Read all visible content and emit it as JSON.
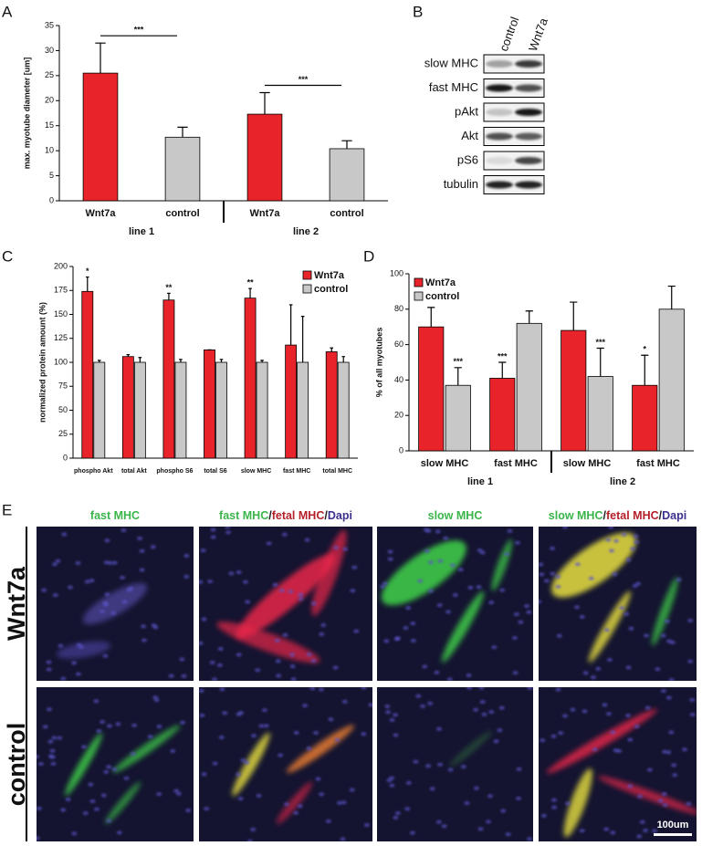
{
  "panel_labels": [
    "A",
    "B",
    "C",
    "D",
    "E"
  ],
  "chart_data": [
    {
      "type": "bar",
      "y_label": "max. myotube diameter [um]",
      "categories": [
        "Wnt7a",
        "control",
        "Wnt7a",
        "control"
      ],
      "groups": [
        "line 1",
        "line 2"
      ],
      "annotations": [
        "***",
        "***"
      ],
      "values": [
        25.5,
        12.7,
        17.3,
        10.4
      ],
      "errors": [
        6,
        2,
        4.3,
        1.6
      ],
      "colors": [
        "#e8232a",
        "#c8c8c8",
        "#e8232a",
        "#c8c8c8"
      ],
      "ylim": [
        0,
        35
      ],
      "yticks": [
        0,
        5,
        10,
        15,
        20,
        25,
        30,
        35
      ]
    },
    {
      "type": "grouped_bar",
      "y_label": "normalized protein amount (%)",
      "legend": "upper right",
      "categories": [
        "phospho Akt",
        "total Akt",
        "phospho S6",
        "total S6",
        "slow MHC",
        "fast MHC",
        "total MHC"
      ],
      "series": [
        {
          "name": "Wnt7a",
          "color": "#e8232a",
          "values": [
            174,
            106,
            165,
            113,
            167,
            118,
            111
          ],
          "errors": [
            15,
            2,
            7,
            0,
            10,
            42,
            4
          ],
          "significance": [
            "*",
            null,
            "**",
            null,
            "**",
            null,
            null
          ]
        },
        {
          "name": "control",
          "color": "#c8c8c8",
          "values": [
            100,
            100,
            100,
            100,
            100,
            100,
            100
          ],
          "errors": [
            2,
            5,
            3,
            3,
            2,
            48,
            6
          ],
          "significance": [
            null,
            null,
            null,
            null,
            null,
            null,
            null
          ]
        }
      ],
      "ylim": [
        0,
        200
      ],
      "yticks": [
        0,
        25,
        50,
        75,
        100,
        125,
        150,
        175,
        200
      ]
    },
    {
      "type": "grouped_bar",
      "y_label": "% of all myotubes",
      "legend": "upper left",
      "categories": [
        "slow MHC",
        "fast MHC",
        "slow MHC",
        "fast MHC"
      ],
      "groups": [
        "line 1",
        "line 2"
      ],
      "series": [
        {
          "name": "Wnt7a",
          "color": "#e8232a",
          "values": [
            70,
            41,
            68,
            37
          ],
          "errors": [
            11,
            9,
            16,
            17
          ],
          "significance": [
            null,
            "***",
            null,
            "*"
          ]
        },
        {
          "name": "control",
          "color": "#c8c8c8",
          "values": [
            37,
            72,
            42,
            80
          ],
          "errors": [
            10,
            7,
            16,
            13
          ],
          "significance": [
            "***",
            null,
            "***",
            null
          ]
        }
      ],
      "ylim": [
        0,
        100
      ],
      "yticks": [
        0,
        20,
        40,
        60,
        80,
        100
      ]
    }
  ],
  "blot": {
    "columns": [
      "control",
      "Wnt7a"
    ],
    "rows": [
      "slow MHC",
      "fast MHC",
      "pAkt",
      "Akt",
      "pS6",
      "tubulin"
    ]
  },
  "micrographs": {
    "columns": [
      [
        {
          "text": "fast MHC",
          "color": "#3ab54a"
        }
      ],
      [
        {
          "text": "fast MHC",
          "color": "#3ab54a"
        },
        {
          "text": "/",
          "color": "#222222"
        },
        {
          "text": "fetal MHC",
          "color": "#b5202a"
        },
        {
          "text": "/",
          "color": "#222222"
        },
        {
          "text": "Dapi",
          "color": "#3b2f8f"
        }
      ],
      [
        {
          "text": "slow MHC",
          "color": "#3ab54a"
        }
      ],
      [
        {
          "text": "slow MHC",
          "color": "#3ab54a"
        },
        {
          "text": "/",
          "color": "#222222"
        },
        {
          "text": "fetal MHC",
          "color": "#b5202a"
        },
        {
          "text": "/",
          "color": "#222222"
        },
        {
          "text": "Dapi",
          "color": "#3b2f8f"
        }
      ]
    ],
    "rows": [
      "Wnt7a",
      "control"
    ],
    "scale_bar": "100um"
  }
}
